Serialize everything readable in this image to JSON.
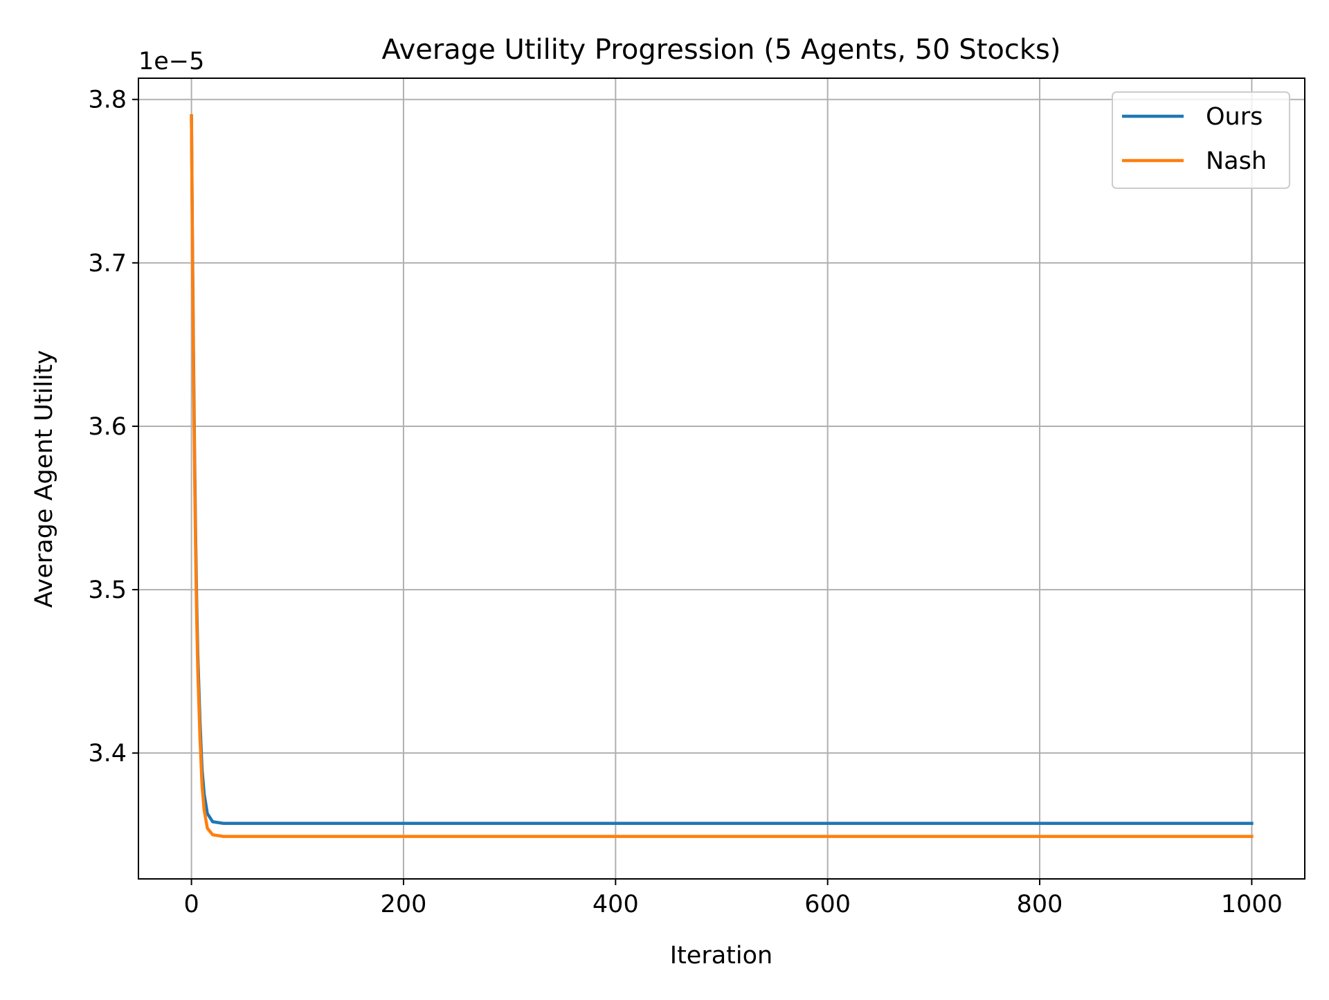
{
  "chart_data": {
    "type": "line",
    "title": "Average Utility Progression (5 Agents, 50 Stocks)",
    "xlabel": "Iteration",
    "ylabel": "Average Agent Utility",
    "y_offset_label": "1e−5",
    "xlim": [
      -50,
      1050
    ],
    "ylim": [
      3.323,
      3.813
    ],
    "xticks": [
      0,
      200,
      400,
      600,
      800,
      1000
    ],
    "xtick_labels": [
      "0",
      "200",
      "400",
      "600",
      "800",
      "1000"
    ],
    "yticks": [
      3.4,
      3.5,
      3.6,
      3.7,
      3.8
    ],
    "ytick_labels": [
      "3.4",
      "3.5",
      "3.6",
      "3.7",
      "3.8"
    ],
    "grid": true,
    "legend_position": "top-right",
    "series": [
      {
        "name": "Ours",
        "color": "#1f77b4",
        "x": [
          0,
          1,
          2,
          3,
          4,
          5,
          6,
          8,
          10,
          12,
          15,
          20,
          30,
          50,
          100,
          200,
          400,
          600,
          800,
          1000
        ],
        "y": [
          3.79,
          3.71,
          3.64,
          3.58,
          3.53,
          3.49,
          3.46,
          3.42,
          3.39,
          3.375,
          3.363,
          3.358,
          3.357,
          3.357,
          3.357,
          3.357,
          3.357,
          3.357,
          3.357,
          3.357
        ]
      },
      {
        "name": "Nash",
        "color": "#ff7f0e",
        "x": [
          0,
          1,
          2,
          3,
          4,
          5,
          6,
          8,
          10,
          12,
          15,
          20,
          30,
          50,
          100,
          200,
          400,
          600,
          800,
          1000
        ],
        "y": [
          3.79,
          3.7,
          3.63,
          3.57,
          3.52,
          3.48,
          3.45,
          3.41,
          3.38,
          3.365,
          3.354,
          3.35,
          3.349,
          3.349,
          3.349,
          3.349,
          3.349,
          3.349,
          3.349,
          3.349
        ]
      }
    ]
  }
}
